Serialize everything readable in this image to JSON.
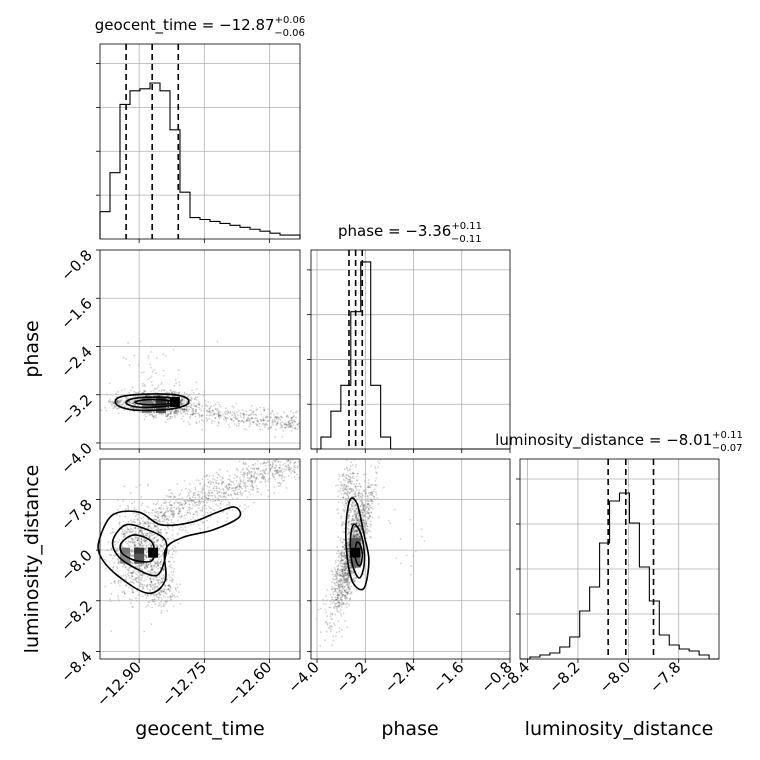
{
  "chart_data": {
    "type": "corner",
    "parameters": [
      "geocent_time",
      "phase",
      "luminosity_distance"
    ],
    "panels": {
      "geocent_time": {
        "title": {
          "prefix": "geocent_time = −12.87",
          "sup": "+0.06",
          "sub": "−0.06"
        },
        "quantiles": [
          -12.93,
          -12.87,
          -12.81
        ],
        "range": [
          -12.99,
          -12.53
        ],
        "bin_edges": [
          -12.99,
          -12.967,
          -12.944,
          -12.921,
          -12.898,
          -12.875,
          -12.852,
          -12.829,
          -12.806,
          -12.783,
          -12.76,
          -12.737,
          -12.714,
          -12.691,
          -12.668,
          -12.645,
          -12.622,
          -12.599,
          -12.576,
          -12.553,
          -12.53
        ],
        "counts": [
          0.14,
          0.34,
          0.69,
          0.76,
          0.77,
          0.8,
          0.76,
          0.56,
          0.24,
          0.11,
          0.1,
          0.09,
          0.08,
          0.07,
          0.06,
          0.05,
          0.04,
          0.03,
          0.02,
          0.02
        ],
        "xticks": [
          "−12.90",
          "−12.75",
          "−12.60"
        ],
        "xtick_values": [
          -12.9,
          -12.75,
          -12.6
        ],
        "xlabel": "geocent_time"
      },
      "phase": {
        "title": {
          "prefix": "phase = −3.36",
          "sup": "+0.11",
          "sub": "−0.11"
        },
        "quantiles": [
          -3.47,
          -3.36,
          -3.25
        ],
        "range": [
          -4.1,
          -0.8
        ],
        "bin_edges": [
          -4.1,
          -3.935,
          -3.77,
          -3.605,
          -3.44,
          -3.275,
          -3.11,
          -2.945,
          -2.78,
          -2.615,
          -2.45,
          -2.285,
          -2.12,
          -1.955,
          -1.79,
          -1.625,
          -1.46,
          -1.295,
          -1.13,
          -0.965,
          -0.8
        ],
        "counts": [
          0,
          0.06,
          0.19,
          0.32,
          0.69,
          0.94,
          0.32,
          0.06,
          0,
          0,
          0,
          0,
          0,
          0,
          0,
          0,
          0,
          0,
          0,
          0
        ],
        "xticks": [
          "−4.0",
          "−3.2",
          "−2.4",
          "−1.6",
          "−0.8"
        ],
        "xtick_values": [
          -4.0,
          -3.2,
          -2.4,
          -1.6,
          -0.8
        ],
        "yticks": [
          "−0.8",
          "−1.6",
          "−2.4",
          "−3.2",
          "−4.0"
        ],
        "ytick_values": [
          -0.8,
          -1.6,
          -2.4,
          -3.2,
          -4.0
        ],
        "xlabel": "phase",
        "ylabel": "phase"
      },
      "luminosity_distance": {
        "title": {
          "prefix": "luminosity_distance = −8.01",
          "sup": "+0.11",
          "sub": "−0.07"
        },
        "quantiles": [
          -8.08,
          -8.01,
          -7.9
        ],
        "range": [
          -8.43,
          -7.64
        ],
        "bin_edges": [
          -8.43,
          -8.3905,
          -8.351,
          -8.3115,
          -8.272,
          -8.2325,
          -8.193,
          -8.1535,
          -8.114,
          -8.0745,
          -8.035,
          -7.9955,
          -7.956,
          -7.9165,
          -7.877,
          -7.8375,
          -7.798,
          -7.7585,
          -7.719,
          -7.6795,
          -7.64
        ],
        "counts": [
          0,
          0.01,
          0.02,
          0.03,
          0.06,
          0.11,
          0.24,
          0.36,
          0.58,
          0.79,
          0.83,
          0.68,
          0.46,
          0.29,
          0.12,
          0.07,
          0.05,
          0.04,
          0.02,
          0
        ],
        "xticks": [
          "−8.4",
          "−8.2",
          "−8.0",
          "−7.8"
        ],
        "xtick_values": [
          -8.4,
          -8.2,
          -8.0,
          -7.8
        ],
        "yticks": [
          "−7.8",
          "−8.0",
          "−8.2",
          "−8.4"
        ],
        "ytick_values": [
          -7.8,
          -8.0,
          -8.2,
          -8.4
        ],
        "xlabel": "luminosity_distance",
        "ylabel": "luminosity_distance"
      }
    },
    "pairs": [
      {
        "x": "geocent_time",
        "y": "phase",
        "center": [
          -12.85,
          -3.32
        ],
        "contour_levels": [
          [
            [
              -12.955,
              -3.32
            ],
            [
              -12.94,
              -3.23
            ],
            [
              -12.88,
              -3.19
            ],
            [
              -12.82,
              -3.2
            ],
            [
              -12.79,
              -3.26
            ],
            [
              -12.79,
              -3.36
            ],
            [
              -12.83,
              -3.44
            ],
            [
              -12.9,
              -3.46
            ],
            [
              -12.94,
              -3.41
            ]
          ],
          [
            [
              -12.93,
              -3.32
            ],
            [
              -12.91,
              -3.26
            ],
            [
              -12.86,
              -3.24
            ],
            [
              -12.82,
              -3.26
            ],
            [
              -12.81,
              -3.33
            ],
            [
              -12.84,
              -3.39
            ],
            [
              -12.89,
              -3.41
            ],
            [
              -12.92,
              -3.38
            ]
          ],
          [
            [
              -12.91,
              -3.32
            ],
            [
              -12.88,
              -3.28
            ],
            [
              -12.84,
              -3.29
            ],
            [
              -12.82,
              -3.33
            ],
            [
              -12.85,
              -3.36
            ],
            [
              -12.89,
              -3.36
            ]
          ]
        ]
      },
      {
        "x": "geocent_time",
        "y": "luminosity_distance",
        "center": [
          -12.9,
          -8.01
        ],
        "contour_levels": [
          [
            [
              -12.99,
              -7.95
            ],
            [
              -12.96,
              -7.86
            ],
            [
              -12.9,
              -7.85
            ],
            [
              -12.85,
              -7.9
            ],
            [
              -12.78,
              -7.89
            ],
            [
              -12.72,
              -7.85
            ],
            [
              -12.68,
              -7.83
            ],
            [
              -12.67,
              -7.87
            ],
            [
              -12.73,
              -7.92
            ],
            [
              -12.8,
              -7.95
            ],
            [
              -12.84,
              -8.0
            ],
            [
              -12.84,
              -8.12
            ],
            [
              -12.88,
              -8.17
            ],
            [
              -12.95,
              -8.1
            ],
            [
              -12.99,
              -8.02
            ]
          ],
          [
            [
              -12.96,
              -7.96
            ],
            [
              -12.93,
              -7.9
            ],
            [
              -12.88,
              -7.92
            ],
            [
              -12.84,
              -7.96
            ],
            [
              -12.84,
              -8.03
            ],
            [
              -12.86,
              -8.1
            ],
            [
              -12.91,
              -8.07
            ],
            [
              -12.95,
              -8.02
            ]
          ],
          [
            [
              -12.94,
              -7.97
            ],
            [
              -12.91,
              -7.94
            ],
            [
              -12.87,
              -7.97
            ],
            [
              -12.87,
              -8.04
            ],
            [
              -12.91,
              -8.04
            ],
            [
              -12.94,
              -8.01
            ]
          ]
        ]
      },
      {
        "x": "phase",
        "y": "luminosity_distance",
        "center": [
          -3.36,
          -8.01
        ],
        "contour_levels": [
          [
            [
              -3.45,
              -7.8
            ],
            [
              -3.33,
              -7.82
            ],
            [
              -3.22,
              -7.94
            ],
            [
              -3.14,
              -8.04
            ],
            [
              -3.22,
              -8.15
            ],
            [
              -3.4,
              -8.13
            ],
            [
              -3.5,
              -8.03
            ],
            [
              -3.52,
              -7.9
            ]
          ],
          [
            [
              -3.4,
              -7.9
            ],
            [
              -3.3,
              -7.92
            ],
            [
              -3.23,
              -7.98
            ],
            [
              -3.22,
              -8.06
            ],
            [
              -3.3,
              -8.11
            ],
            [
              -3.41,
              -8.06
            ],
            [
              -3.45,
              -7.97
            ]
          ],
          [
            [
              -3.34,
              -7.97
            ],
            [
              -3.28,
              -7.98
            ],
            [
              -3.25,
              -8.02
            ],
            [
              -3.28,
              -8.06
            ],
            [
              -3.34,
              -8.05
            ],
            [
              -3.37,
              -8.01
            ]
          ]
        ]
      }
    ]
  }
}
